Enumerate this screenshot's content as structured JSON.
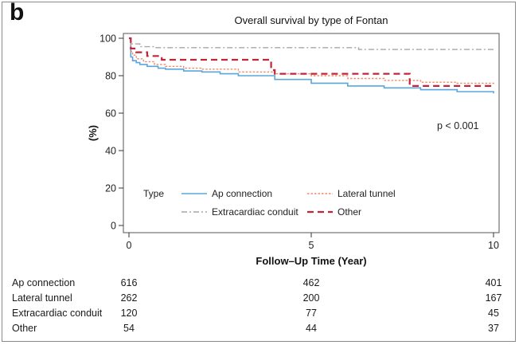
{
  "panel_label": "b",
  "chart_data": {
    "type": "line",
    "title": "Overall survival by type of Fontan",
    "xlabel": "Follow–Up Time (Year)",
    "ylabel": "(%)",
    "xlim": [
      0,
      10
    ],
    "ylim": [
      0,
      100
    ],
    "xticks": [
      0,
      5,
      10
    ],
    "yticks": [
      0,
      20,
      40,
      60,
      80,
      100
    ],
    "grid": false,
    "annotation": "p < 0.001",
    "legend": {
      "title": "Type",
      "placement": "lower-left, inside plot"
    },
    "series": [
      {
        "name": "Ap connection",
        "color": "#5aa5dc",
        "dash": "solid",
        "x": [
          0,
          0.05,
          0.1,
          0.2,
          0.3,
          0.5,
          0.8,
          1,
          1.5,
          2,
          2.5,
          3,
          4,
          5,
          6,
          7,
          8,
          9,
          10
        ],
        "y": [
          100,
          90,
          88,
          87,
          86,
          85,
          84,
          83.5,
          82.5,
          82,
          81,
          80,
          78,
          76,
          74.5,
          73.5,
          72.5,
          71.5,
          70.5
        ]
      },
      {
        "name": "Lateral tunnel",
        "color": "#f08a6a",
        "dash": "dotted",
        "x": [
          0,
          0.05,
          0.1,
          0.2,
          0.4,
          0.7,
          1,
          1.5,
          2,
          3,
          4,
          5,
          6,
          7,
          8,
          9,
          10
        ],
        "y": [
          100,
          93,
          91,
          89,
          87.5,
          86,
          85,
          84,
          83.5,
          82,
          81,
          80,
          78.5,
          77.5,
          76.5,
          76,
          75
        ]
      },
      {
        "name": "Extracardiac conduit",
        "color": "#a6a6a6",
        "dash": "dashdot",
        "x": [
          0,
          0.05,
          0.3,
          0.7,
          6.2,
          6.3,
          10
        ],
        "y": [
          100,
          97,
          95.5,
          95,
          95,
          94,
          94
        ]
      },
      {
        "name": "Other",
        "color": "#c0253a",
        "dash": "dashed",
        "x": [
          0,
          0.05,
          0.2,
          0.5,
          0.9,
          3.9,
          4.0,
          7.6,
          7.7,
          10
        ],
        "y": [
          100,
          94.5,
          92.5,
          90.5,
          88.5,
          83,
          81,
          81,
          74.5,
          74.5
        ]
      }
    ],
    "risk_table": {
      "times": [
        0,
        5,
        10
      ],
      "rows": [
        {
          "label": "Ap connection",
          "values": [
            "616",
            "462",
            "401"
          ]
        },
        {
          "label": "Lateral tunnel",
          "values": [
            "262",
            "200",
            "167"
          ]
        },
        {
          "label": "Extracardiac conduit",
          "values": [
            "120",
            "77",
            "45"
          ]
        },
        {
          "label": "Other",
          "values": [
            "54",
            "44",
            "37"
          ]
        }
      ]
    }
  }
}
